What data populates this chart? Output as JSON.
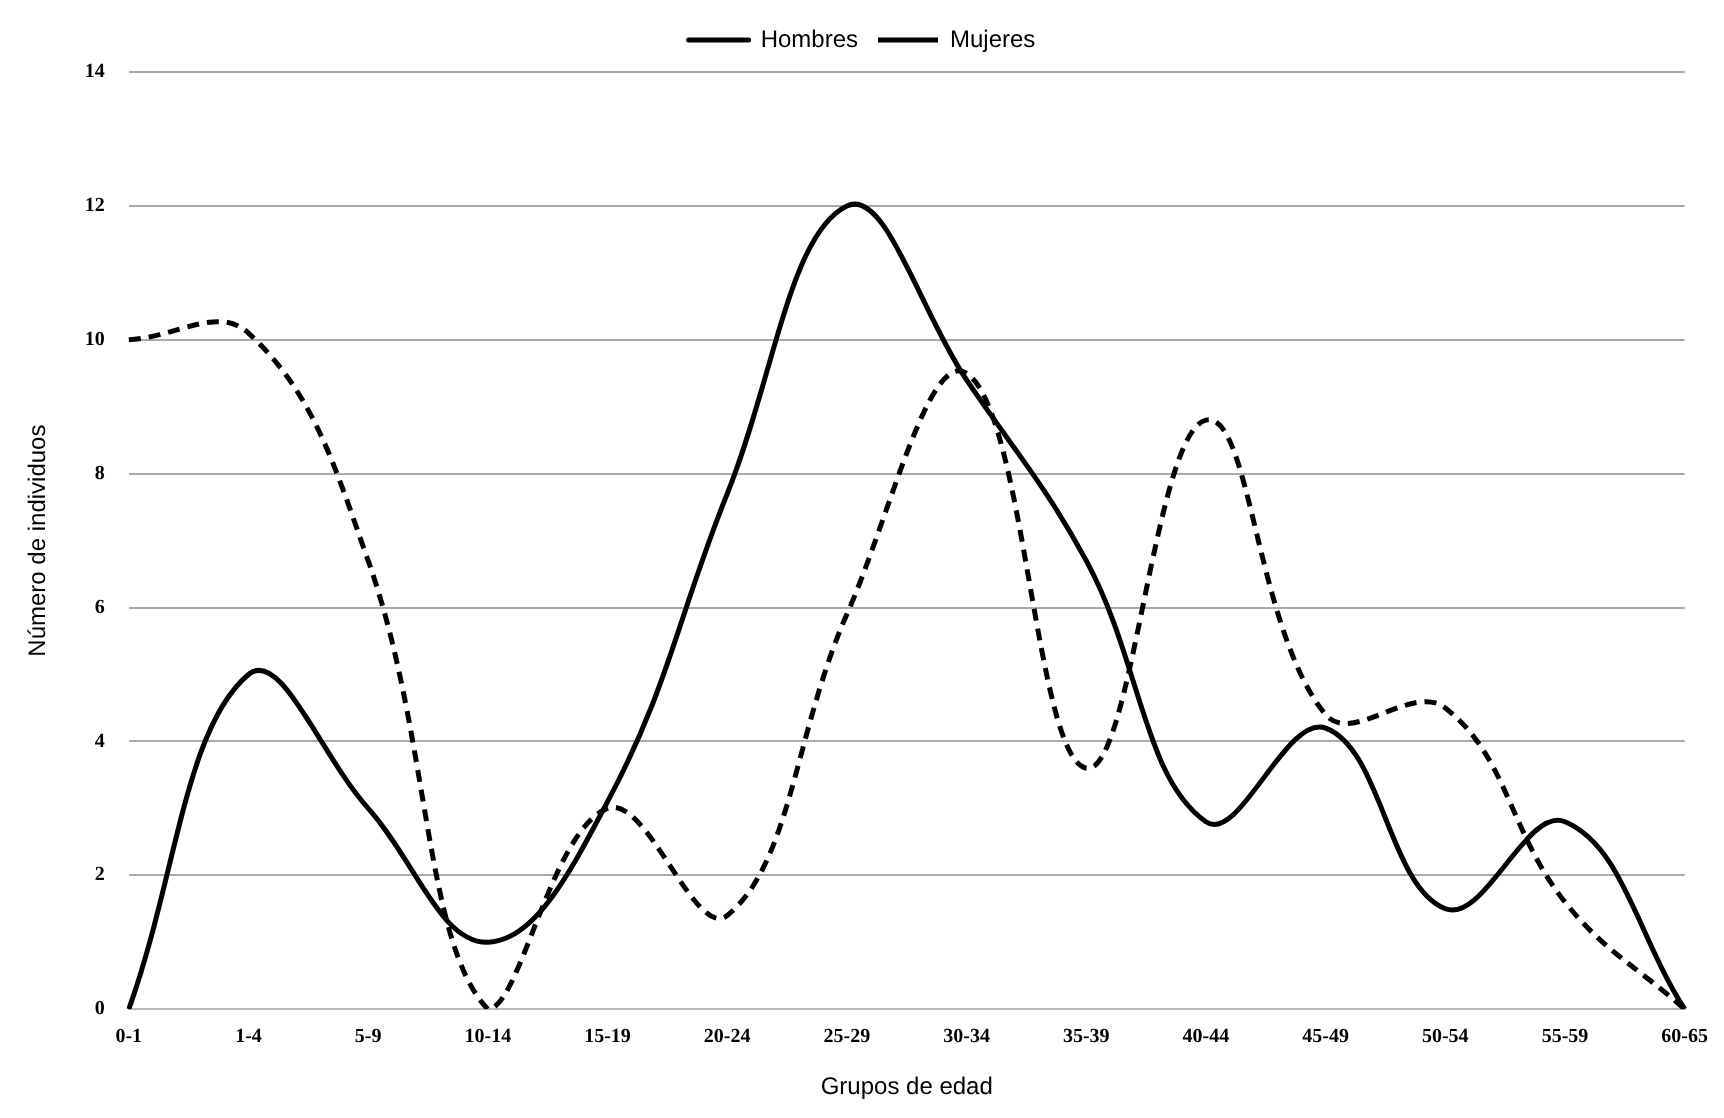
{
  "chart_data": {
    "type": "line",
    "xlabel": "Grupos de edad",
    "ylabel": "Número de individuos",
    "categories": [
      "0-1",
      "1-4",
      "5-9",
      "10-14",
      "15-19",
      "20-24",
      "25-29",
      "30-34",
      "35-39",
      "40-44",
      "45-49",
      "50-54",
      "55-59",
      "60-65"
    ],
    "series": [
      {
        "name": "Hombres",
        "color": "#000000",
        "line_style": "solid",
        "values": [
          0,
          5,
          3,
          1,
          3.1,
          7.7,
          12,
          9.4,
          6.7,
          2.8,
          4.2,
          1.5,
          2.8,
          0
        ]
      },
      {
        "name": "Mujeres",
        "color": "#000000",
        "line_style": "dashed",
        "values": [
          10,
          10.1,
          6.7,
          0,
          3,
          1.4,
          5.9,
          9.5,
          3.6,
          8.8,
          4.4,
          4.5,
          1.6,
          0
        ]
      }
    ],
    "ylim": [
      0,
      14
    ],
    "yticks": [
      0,
      2,
      4,
      6,
      8,
      10,
      12,
      14
    ],
    "grid": "y",
    "legend": "top",
    "marker": "none"
  }
}
